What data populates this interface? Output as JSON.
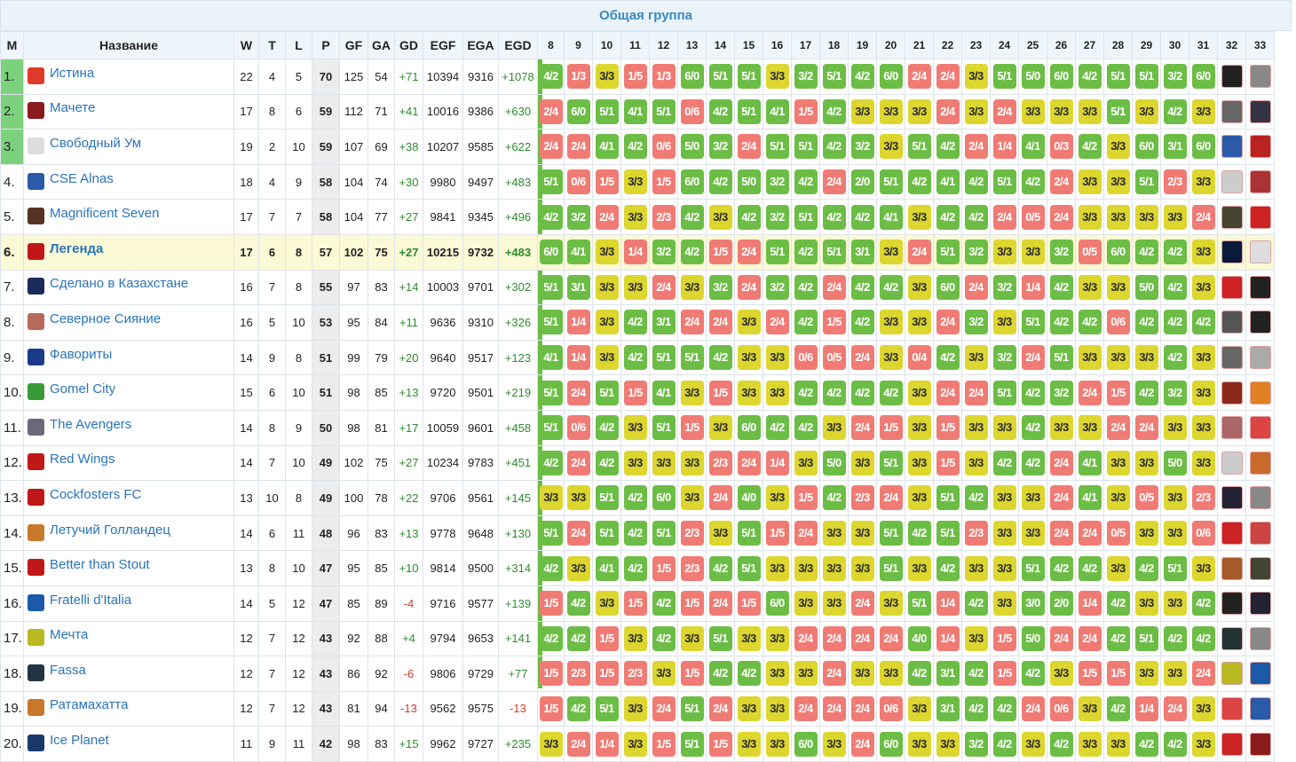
{
  "group_title": "Общая группа",
  "headers": {
    "pos": "M",
    "name": "Название",
    "w": "W",
    "t": "T",
    "l": "L",
    "p": "P",
    "gf": "GF",
    "ga": "GA",
    "gd": "GD",
    "egf": "EGF",
    "ega": "EGA",
    "egd": "EGD",
    "rounds": [
      "8",
      "9",
      "10",
      "11",
      "12",
      "13",
      "14",
      "15",
      "16",
      "17",
      "18",
      "19",
      "20",
      "21",
      "22",
      "23",
      "24",
      "25",
      "26",
      "27",
      "28",
      "29",
      "30",
      "31",
      "32",
      "33"
    ]
  },
  "colors": {
    "win": "#6cbd45",
    "draw": "#dcd62f",
    "loss": "#f07b74",
    "highlight_row": "#fbf9d6",
    "link": "#2c74b8",
    "title": "#3a87c0"
  },
  "rows": [
    {
      "pos": "1.",
      "name": "Истина",
      "logo": "#e03a2a",
      "w": "22",
      "t": "4",
      "l": "5",
      "p": "70",
      "gf": "125",
      "ga": "54",
      "gd": "+71",
      "egf": "10394",
      "ega": "9316",
      "egd": "+1078",
      "results": [
        "4/2",
        "1/3",
        "3/3",
        "1/5",
        "1/3",
        "6/0",
        "5/1",
        "5/1",
        "3/3",
        "3/2",
        "5/1",
        "4/2",
        "6/0",
        "2/4",
        "2/4",
        "3/3",
        "5/1",
        "5/0",
        "6/0",
        "4/2",
        "5/1",
        "5/1",
        "3/2",
        "6/0"
      ],
      "opp": [
        "#222",
        "#888"
      ]
    },
    {
      "pos": "2.",
      "name": "Мачете",
      "logo": "#8b1a1a",
      "w": "17",
      "t": "8",
      "l": "6",
      "p": "59",
      "gf": "112",
      "ga": "71",
      "gd": "+41",
      "egf": "10016",
      "ega": "9386",
      "egd": "+630",
      "results": [
        "2/4",
        "6/0",
        "5/1",
        "4/1",
        "5/1",
        "0/6",
        "4/2",
        "5/1",
        "4/1",
        "1/5",
        "4/2",
        "3/3",
        "3/3",
        "3/3",
        "2/4",
        "3/3",
        "2/4",
        "3/3",
        "3/3",
        "3/3",
        "5/1",
        "3/3",
        "4/2",
        "3/3"
      ],
      "opp": [
        "#666",
        "#334"
      ]
    },
    {
      "pos": "3.",
      "name": "Свободный Ум",
      "logo": "#dddddd",
      "w": "19",
      "t": "2",
      "l": "10",
      "p": "59",
      "gf": "107",
      "ga": "69",
      "gd": "+38",
      "egf": "10207",
      "ega": "9585",
      "egd": "+622",
      "results": [
        "2/4",
        "2/4",
        "4/1",
        "4/2",
        "0/6",
        "5/0",
        "3/2",
        "2/4",
        "5/1",
        "5/1",
        "4/2",
        "3/2",
        "3/3",
        "5/1",
        "4/2",
        "2/4",
        "1/4",
        "4/1",
        "0/3",
        "4/2",
        "3/3",
        "6/0",
        "3/1",
        "6/0"
      ],
      "opp": [
        "#2a5aa8",
        "#b22"
      ]
    },
    {
      "pos": "4.",
      "name": "CSE Alnas",
      "logo": "#2a5aa8",
      "w": "18",
      "t": "4",
      "l": "9",
      "p": "58",
      "gf": "104",
      "ga": "74",
      "gd": "+30",
      "egf": "9980",
      "ega": "9497",
      "egd": "+483",
      "results": [
        "5/1",
        "0/6",
        "1/5",
        "3/3",
        "1/5",
        "6/0",
        "4/2",
        "5/0",
        "3/2",
        "4/2",
        "2/4",
        "2/0",
        "5/1",
        "4/2",
        "4/1",
        "4/2",
        "5/1",
        "4/2",
        "2/4",
        "3/3",
        "3/3",
        "5/1",
        "2/3",
        "3/3"
      ],
      "opp": [
        "#ccc",
        "#a33"
      ]
    },
    {
      "pos": "5.",
      "name": "Magnificent Seven",
      "logo": "#553322",
      "w": "17",
      "t": "7",
      "l": "7",
      "p": "58",
      "gf": "104",
      "ga": "77",
      "gd": "+27",
      "egf": "9841",
      "ega": "9345",
      "egd": "+496",
      "results": [
        "4/2",
        "3/2",
        "2/4",
        "3/3",
        "2/3",
        "4/2",
        "3/3",
        "4/2",
        "3/2",
        "5/1",
        "4/2",
        "4/2",
        "4/1",
        "3/3",
        "4/2",
        "4/2",
        "2/4",
        "0/5",
        "2/4",
        "3/3",
        "3/3",
        "3/3",
        "3/3",
        "2/4"
      ],
      "opp": [
        "#443",
        "#c22"
      ]
    },
    {
      "pos": "6.",
      "name": "Легенда",
      "logo": "#c01818",
      "w": "17",
      "t": "6",
      "l": "8",
      "p": "57",
      "gf": "102",
      "ga": "75",
      "gd": "+27",
      "egf": "10215",
      "ega": "9732",
      "egd": "+483",
      "hl": true,
      "results": [
        "6/0",
        "4/1",
        "3/3",
        "1/4",
        "3/2",
        "4/2",
        "1/5",
        "2/4",
        "5/1",
        "4/2",
        "5/1",
        "3/1",
        "3/3",
        "2/4",
        "5/1",
        "3/2",
        "3/3",
        "3/3",
        "3/2",
        "0/5",
        "6/0",
        "4/2",
        "4/2",
        "3/3"
      ],
      "opp": [
        "#0a1a3a",
        "#ddd"
      ]
    },
    {
      "pos": "7.",
      "name": "Сделано в Казахстане",
      "logo": "#1a2a5a",
      "w": "16",
      "t": "7",
      "l": "8",
      "p": "55",
      "gf": "97",
      "ga": "83",
      "gd": "+14",
      "egf": "10003",
      "ega": "9701",
      "egd": "+302",
      "results": [
        "5/1",
        "3/1",
        "3/3",
        "3/3",
        "2/4",
        "3/3",
        "3/2",
        "2/4",
        "3/2",
        "4/2",
        "2/4",
        "4/2",
        "4/2",
        "3/3",
        "6/0",
        "2/4",
        "3/2",
        "1/4",
        "4/2",
        "3/3",
        "3/3",
        "5/0",
        "4/2",
        "3/3"
      ],
      "opp": [
        "#c22",
        "#222"
      ]
    },
    {
      "pos": "8.",
      "name": "Северное Сияние",
      "logo": "#b86a5a",
      "w": "16",
      "t": "5",
      "l": "10",
      "p": "53",
      "gf": "95",
      "ga": "84",
      "gd": "+11",
      "egf": "9636",
      "ega": "9310",
      "egd": "+326",
      "results": [
        "5/1",
        "1/4",
        "3/3",
        "4/2",
        "3/1",
        "2/4",
        "2/4",
        "3/3",
        "2/4",
        "4/2",
        "1/5",
        "4/2",
        "3/3",
        "3/3",
        "2/4",
        "3/2",
        "3/3",
        "5/1",
        "4/2",
        "4/2",
        "0/6",
        "4/2",
        "4/2",
        "4/2"
      ],
      "opp": [
        "#555",
        "#222"
      ]
    },
    {
      "pos": "9.",
      "name": "Фавориты",
      "logo": "#1a3a8a",
      "w": "14",
      "t": "9",
      "l": "8",
      "p": "51",
      "gf": "99",
      "ga": "79",
      "gd": "+20",
      "egf": "9640",
      "ega": "9517",
      "egd": "+123",
      "results": [
        "4/1",
        "1/4",
        "3/3",
        "4/2",
        "5/1",
        "5/1",
        "4/2",
        "3/3",
        "3/3",
        "0/6",
        "0/5",
        "2/4",
        "3/3",
        "0/4",
        "4/2",
        "3/3",
        "3/2",
        "2/4",
        "5/1",
        "3/3",
        "3/3",
        "3/3",
        "4/2",
        "3/3"
      ],
      "opp": [
        "#666",
        "#aaa"
      ]
    },
    {
      "pos": "10.",
      "name": "Gomel City",
      "logo": "#3a9a3a",
      "w": "15",
      "t": "6",
      "l": "10",
      "p": "51",
      "gf": "98",
      "ga": "85",
      "gd": "+13",
      "egf": "9720",
      "ega": "9501",
      "egd": "+219",
      "results": [
        "5/1",
        "2/4",
        "5/1",
        "1/5",
        "4/1",
        "3/3",
        "1/5",
        "3/3",
        "3/3",
        "4/2",
        "4/2",
        "4/2",
        "4/2",
        "3/3",
        "2/4",
        "2/4",
        "5/1",
        "4/2",
        "3/2",
        "2/4",
        "1/5",
        "4/2",
        "3/2",
        "3/3"
      ],
      "opp": [
        "#8b2a1a",
        "#e08020"
      ]
    },
    {
      "pos": "11.",
      "name": "The Avengers",
      "logo": "#6a6a7a",
      "w": "14",
      "t": "8",
      "l": "9",
      "p": "50",
      "gf": "98",
      "ga": "81",
      "gd": "+17",
      "egf": "10059",
      "ega": "9601",
      "egd": "+458",
      "results": [
        "5/1",
        "0/6",
        "4/2",
        "3/3",
        "5/1",
        "1/5",
        "3/3",
        "6/0",
        "4/2",
        "4/2",
        "3/3",
        "2/4",
        "1/5",
        "3/3",
        "1/5",
        "3/3",
        "3/3",
        "4/2",
        "3/3",
        "3/3",
        "2/4",
        "2/4",
        "3/3",
        "3/3"
      ],
      "opp": [
        "#a66",
        "#d44"
      ]
    },
    {
      "pos": "12.",
      "name": "Red Wings",
      "logo": "#c01818",
      "w": "14",
      "t": "7",
      "l": "10",
      "p": "49",
      "gf": "102",
      "ga": "75",
      "gd": "+27",
      "egf": "10234",
      "ega": "9783",
      "egd": "+451",
      "results": [
        "4/2",
        "2/4",
        "4/2",
        "3/3",
        "3/3",
        "3/3",
        "2/3",
        "2/4",
        "1/4",
        "3/3",
        "5/0",
        "3/3",
        "5/1",
        "3/3",
        "1/5",
        "3/3",
        "4/2",
        "4/2",
        "2/4",
        "4/1",
        "3/3",
        "3/3",
        "5/0",
        "3/3"
      ],
      "opp": [
        "#ccc",
        "#c86a2a"
      ]
    },
    {
      "pos": "13.",
      "name": "Cockfosters FC",
      "logo": "#c01818",
      "w": "13",
      "t": "10",
      "l": "8",
      "p": "49",
      "gf": "100",
      "ga": "78",
      "gd": "+22",
      "egf": "9706",
      "ega": "9561",
      "egd": "+145",
      "results": [
        "3/3",
        "3/3",
        "5/1",
        "4/2",
        "6/0",
        "3/3",
        "2/4",
        "4/0",
        "3/3",
        "1/5",
        "4/2",
        "2/3",
        "2/4",
        "3/3",
        "5/1",
        "4/2",
        "3/3",
        "3/3",
        "2/4",
        "4/1",
        "3/3",
        "0/5",
        "3/3",
        "2/3"
      ],
      "opp": [
        "#223",
        "#888"
      ]
    },
    {
      "pos": "14.",
      "name": "Летучий Голландец",
      "logo": "#c8782a",
      "w": "14",
      "t": "6",
      "l": "11",
      "p": "48",
      "gf": "96",
      "ga": "83",
      "gd": "+13",
      "egf": "9778",
      "ega": "9648",
      "egd": "+130",
      "results": [
        "5/1",
        "2/4",
        "5/1",
        "4/2",
        "5/1",
        "2/3",
        "3/3",
        "5/1",
        "1/5",
        "2/4",
        "3/3",
        "3/3",
        "5/1",
        "4/2",
        "5/1",
        "2/3",
        "3/3",
        "3/3",
        "2/4",
        "2/4",
        "0/5",
        "3/3",
        "3/3",
        "0/6"
      ],
      "opp": [
        "#c22",
        "#c44"
      ]
    },
    {
      "pos": "15.",
      "name": "Better than Stout",
      "logo": "#c01818",
      "w": "13",
      "t": "8",
      "l": "10",
      "p": "47",
      "gf": "95",
      "ga": "85",
      "gd": "+10",
      "egf": "9814",
      "ega": "9500",
      "egd": "+314",
      "results": [
        "4/2",
        "3/3",
        "4/1",
        "4/2",
        "1/5",
        "2/3",
        "4/2",
        "5/1",
        "3/3",
        "3/3",
        "3/3",
        "3/3",
        "5/1",
        "3/3",
        "4/2",
        "3/3",
        "3/3",
        "5/1",
        "4/2",
        "4/2",
        "3/3",
        "4/2",
        "5/1",
        "3/3"
      ],
      "opp": [
        "#a65a2a",
        "#443"
      ]
    },
    {
      "pos": "16.",
      "name": "Fratelli d'Italia",
      "logo": "#1a5aa8",
      "w": "14",
      "t": "5",
      "l": "12",
      "p": "47",
      "gf": "85",
      "ga": "89",
      "gd": "-4",
      "egf": "9716",
      "ega": "9577",
      "egd": "+139",
      "results": [
        "1/5",
        "4/2",
        "3/3",
        "1/5",
        "4/2",
        "1/5",
        "2/4",
        "1/5",
        "6/0",
        "3/3",
        "3/3",
        "2/4",
        "3/3",
        "5/1",
        "1/4",
        "4/2",
        "3/3",
        "3/0",
        "2/0",
        "1/4",
        "4/2",
        "3/3",
        "3/3",
        "4/2"
      ],
      "opp": [
        "#222",
        "#223"
      ]
    },
    {
      "pos": "17.",
      "name": "Мечта",
      "logo": "#b8b820",
      "w": "12",
      "t": "7",
      "l": "12",
      "p": "43",
      "gf": "92",
      "ga": "88",
      "gd": "+4",
      "egf": "9794",
      "ega": "9653",
      "egd": "+141",
      "results": [
        "4/2",
        "4/2",
        "1/5",
        "3/3",
        "4/2",
        "3/3",
        "5/1",
        "3/3",
        "3/3",
        "2/4",
        "2/4",
        "2/4",
        "2/4",
        "4/0",
        "1/4",
        "3/3",
        "1/5",
        "5/0",
        "2/4",
        "2/4",
        "4/2",
        "5/1",
        "4/2",
        "4/2"
      ],
      "opp": [
        "#233",
        "#888"
      ]
    },
    {
      "pos": "18.",
      "name": "Fassa",
      "logo": "#223344",
      "w": "12",
      "t": "7",
      "l": "12",
      "p": "43",
      "gf": "86",
      "ga": "92",
      "gd": "-6",
      "egf": "9806",
      "ega": "9729",
      "egd": "+77",
      "results": [
        "1/5",
        "2/3",
        "1/5",
        "2/3",
        "3/3",
        "1/5",
        "4/2",
        "4/2",
        "3/3",
        "3/3",
        "2/4",
        "3/3",
        "3/3",
        "4/2",
        "3/1",
        "4/2",
        "1/5",
        "4/2",
        "3/3",
        "1/5",
        "1/5",
        "3/3",
        "3/3",
        "2/4"
      ],
      "opp": [
        "#b8b820",
        "#1a5aa8"
      ]
    },
    {
      "pos": "19.",
      "name": "Ратамахатта",
      "logo": "#c8782a",
      "w": "12",
      "t": "7",
      "l": "12",
      "p": "43",
      "gf": "81",
      "ga": "94",
      "gd": "-13",
      "egf": "9562",
      "ega": "9575",
      "egd": "-13",
      "results": [
        "1/5",
        "4/2",
        "5/1",
        "3/3",
        "2/4",
        "5/1",
        "2/4",
        "3/3",
        "3/3",
        "2/4",
        "2/4",
        "2/4",
        "0/6",
        "3/3",
        "3/1",
        "4/2",
        "4/2",
        "2/4",
        "0/6",
        "3/3",
        "4/2",
        "1/4",
        "2/4",
        "3/3"
      ],
      "opp": [
        "#d44",
        "#2a5aa8"
      ]
    },
    {
      "pos": "20.",
      "name": "Ice Planet",
      "logo": "#1a3a6a",
      "w": "11",
      "t": "9",
      "l": "11",
      "p": "42",
      "gf": "98",
      "ga": "83",
      "gd": "+15",
      "egf": "9962",
      "ega": "9727",
      "egd": "+235",
      "results": [
        "3/3",
        "2/4",
        "1/4",
        "3/3",
        "1/5",
        "5/1",
        "1/5",
        "3/3",
        "3/3",
        "6/0",
        "3/3",
        "2/4",
        "6/0",
        "3/3",
        "3/3",
        "3/2",
        "4/2",
        "3/3",
        "4/2",
        "3/3",
        "3/3",
        "4/2",
        "4/2",
        "3/3"
      ],
      "opp": [
        "#c22",
        "#8b1a1a"
      ]
    }
  ]
}
